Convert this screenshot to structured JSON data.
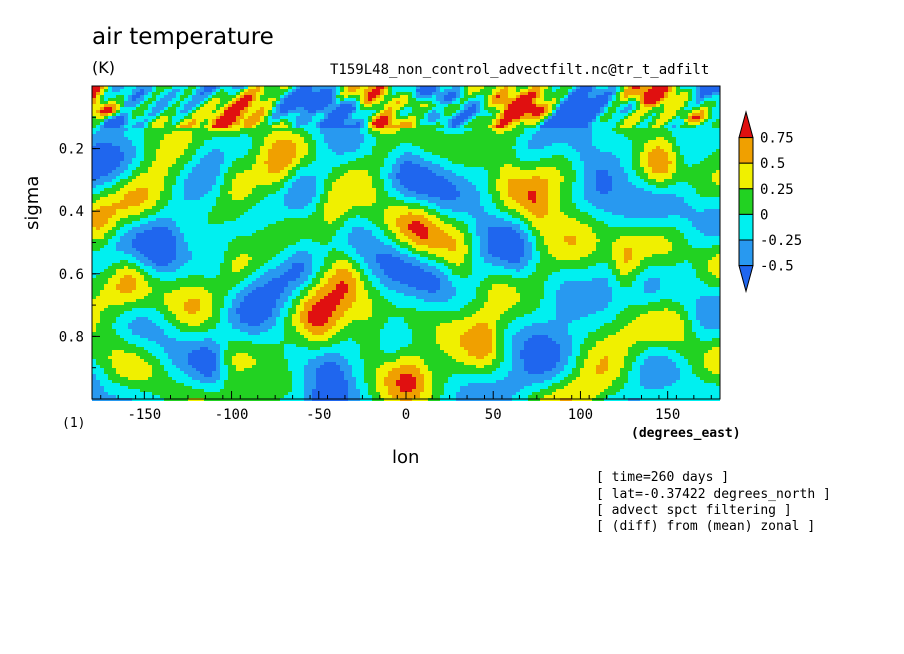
{
  "header": {
    "title": "air temperature",
    "units": "(K)",
    "source": "T159L48_non_control_advectfilt.nc@tr_t_adfilt"
  },
  "axes": {
    "ylabel": "sigma",
    "xlabel": "lon",
    "xunits": "(degrees_east)",
    "xmultiplier": "(1)"
  },
  "info_lines": [
    "[ time=260 days ]",
    "[ lat=-0.37422 degrees_north ]",
    "[ advect spct filtering ]",
    "[ (diff) from (mean) zonal ]"
  ],
  "colors": {
    "below_-0.5": "#1f66ee",
    "-0.5_-0.25": "#2899f0",
    "-0.25_0": "#00f0f0",
    "0_0.25": "#22d222",
    "0.25_0.5": "#f0f000",
    "0.5_0.75": "#f0a000",
    "above_0.75": "#e01010"
  },
  "chart_data": {
    "type": "heatmap",
    "title": "air temperature",
    "xlabel": "lon",
    "ylabel": "sigma",
    "xlim": [
      -180,
      180
    ],
    "ylim": [
      0,
      1
    ],
    "y_inverted": true,
    "xticks": [
      -150,
      -100,
      -50,
      0,
      50,
      100,
      150
    ],
    "xtick_labels": [
      "-150",
      "-100",
      "-50",
      "0",
      "50",
      "100",
      "150"
    ],
    "yticks": [
      0.2,
      0.4,
      0.6,
      0.8
    ],
    "ytick_labels": [
      "0.2",
      "0.4",
      "0.6",
      "0.8"
    ],
    "levels": [
      -0.5,
      -0.25,
      0,
      0.25,
      0.5,
      0.75
    ],
    "colorbar_labels": [
      "-0.5",
      "-0.25",
      "0",
      "0.25",
      "0.5",
      "0.75"
    ],
    "colorbar_colors": [
      "#1f66ee",
      "#2899f0",
      "#00f0f0",
      "#22d222",
      "#f0f000",
      "#f0a000",
      "#e01010"
    ],
    "grid": false,
    "legend": "colorbar right",
    "features": [
      {
        "lon": -170,
        "sigma": 0.08,
        "value": 0.8
      },
      {
        "lon": -55,
        "sigma": 0.09,
        "value": 0.8
      },
      {
        "lon": 5,
        "sigma": 0.05,
        "value": 0.8
      },
      {
        "lon": 22,
        "sigma": 0.07,
        "value": 0.8
      },
      {
        "lon": 75,
        "sigma": 0.08,
        "value": 0.6
      },
      {
        "lon": -103,
        "sigma": 0.12,
        "value": 0.6
      },
      {
        "lon": -15,
        "sigma": 0.12,
        "value": 0.6
      },
      {
        "lon": 165,
        "sigma": 0.1,
        "value": 0.55
      },
      {
        "lon": -165,
        "sigma": 0.11,
        "value": -0.65
      },
      {
        "lon": -30,
        "sigma": 0.07,
        "value": -0.65
      },
      {
        "lon": 45,
        "sigma": 0.08,
        "value": -0.55
      },
      {
        "lon": 130,
        "sigma": 0.07,
        "value": -0.6
      },
      {
        "lon": -175,
        "sigma": 0.45,
        "value": 0.35
      },
      {
        "lon": -160,
        "sigma": 0.6,
        "value": 0.35
      },
      {
        "lon": -100,
        "sigma": 0.25,
        "value": 0.35
      },
      {
        "lon": -100,
        "sigma": 0.9,
        "value": 0.3
      },
      {
        "lon": -72,
        "sigma": 0.3,
        "value": 0.35
      },
      {
        "lon": -50,
        "sigma": 0.78,
        "value": 0.3
      },
      {
        "lon": -42,
        "sigma": 0.4,
        "value": 0.35
      },
      {
        "lon": -35,
        "sigma": 0.6,
        "value": 0.35
      },
      {
        "lon": -20,
        "sigma": 0.78,
        "value": 0.35
      },
      {
        "lon": 2,
        "sigma": 0.9,
        "value": 0.3
      },
      {
        "lon": 30,
        "sigma": 0.6,
        "value": 0.35
      },
      {
        "lon": 45,
        "sigma": 0.8,
        "value": 0.4
      },
      {
        "lon": 58,
        "sigma": 0.25,
        "value": 0.35
      },
      {
        "lon": 75,
        "sigma": 0.42,
        "value": 0.3
      },
      {
        "lon": 98,
        "sigma": 0.28,
        "value": 0.3
      },
      {
        "lon": 125,
        "sigma": 0.57,
        "value": 0.35
      },
      {
        "lon": 145,
        "sigma": 0.25,
        "value": 0.3
      },
      {
        "lon": 150,
        "sigma": 0.62,
        "value": 0.3
      },
      {
        "lon": -140,
        "sigma": 0.52,
        "value": -0.35
      },
      {
        "lon": -110,
        "sigma": 0.57,
        "value": -0.35
      },
      {
        "lon": -112,
        "sigma": 0.88,
        "value": -0.35
      },
      {
        "lon": -60,
        "sigma": 0.55,
        "value": -0.3
      },
      {
        "lon": -45,
        "sigma": 0.95,
        "value": -0.35
      },
      {
        "lon": 0,
        "sigma": 0.2,
        "value": -0.35
      },
      {
        "lon": 20,
        "sigma": 0.45,
        "value": -0.3
      },
      {
        "lon": 65,
        "sigma": 0.6,
        "value": -0.35
      },
      {
        "lon": 100,
        "sigma": 0.22,
        "value": -0.35
      },
      {
        "lon": 115,
        "sigma": 0.6,
        "value": -0.35
      },
      {
        "lon": 160,
        "sigma": 0.2,
        "value": -0.35
      },
      {
        "lon": 170,
        "sigma": 0.8,
        "value": -0.35
      }
    ]
  }
}
